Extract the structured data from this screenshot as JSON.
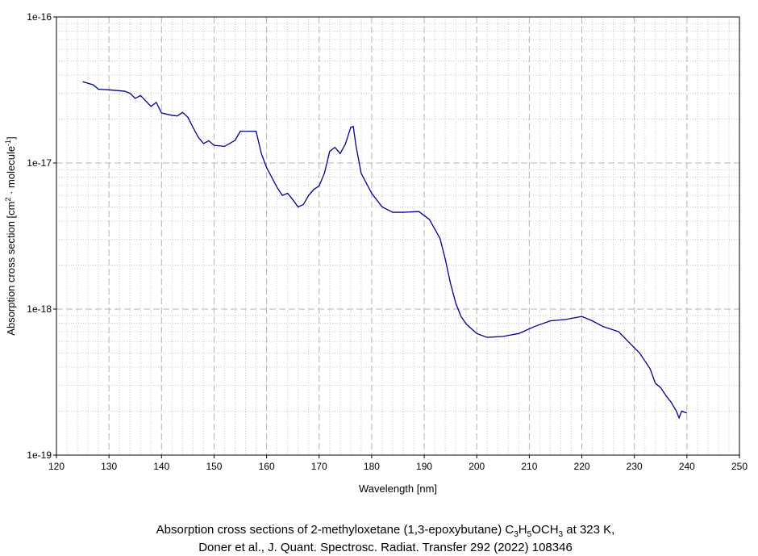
{
  "chart_data": {
    "type": "line",
    "x_label": "Wavelength [nm]",
    "y_label": [
      "Absorption cross section [cm",
      "2",
      " · molecule",
      "-1",
      "]"
    ],
    "caption": [
      [
        "Absorption cross sections of 2-methyloxetane (1,3-epoxybutane) C",
        "3",
        "H",
        "5",
        "OCH",
        "3",
        " at 323 K,"
      ],
      [
        "Doner et al., J. Quant. Spectrosc. Radiat. Transfer 292 (2022) 108346"
      ]
    ],
    "color": "#00008b",
    "log_y": true,
    "grid": true,
    "xlim": [
      120,
      250
    ],
    "xticks": [
      120,
      130,
      140,
      150,
      160,
      170,
      180,
      190,
      200,
      210,
      220,
      230,
      240,
      250
    ],
    "ylim": [
      1e-19,
      1e-16
    ],
    "yticks": [
      {
        "value": 1e-19,
        "label": "1e-19"
      },
      {
        "value": 1e-18,
        "label": "1e-18"
      },
      {
        "value": 1e-17,
        "label": "1e-17"
      },
      {
        "value": 1e-16,
        "label": "1e-16"
      }
    ],
    "x": [
      125,
      127,
      128,
      130,
      133,
      134,
      135,
      136,
      137,
      138,
      139,
      140,
      142,
      143,
      144,
      145,
      146,
      147,
      148,
      149,
      150,
      152,
      154,
      155,
      156,
      158,
      159,
      160,
      162,
      163,
      164,
      165,
      166,
      167,
      168,
      169,
      170,
      171,
      172,
      173,
      174,
      175,
      176,
      176.5,
      177,
      178,
      180,
      182,
      184,
      186,
      189,
      191,
      193,
      194,
      195,
      196,
      197,
      198,
      200,
      202,
      205,
      208,
      211,
      214,
      217,
      220,
      222,
      224,
      227,
      229,
      231,
      233,
      234,
      235,
      236,
      237,
      238,
      238.5,
      239,
      240
    ],
    "values": [
      3.6e-17,
      3.43e-17,
      3.2e-17,
      3.17e-17,
      3.1e-17,
      3e-17,
      2.77e-17,
      2.9e-17,
      2.66e-17,
      2.44e-17,
      2.6e-17,
      2.2e-17,
      2.12e-17,
      2.1e-17,
      2.22e-17,
      2.06e-17,
      1.75e-17,
      1.5e-17,
      1.36e-17,
      1.42e-17,
      1.32e-17,
      1.3e-17,
      1.43e-17,
      1.65e-17,
      1.65e-17,
      1.65e-17,
      1.16e-17,
      9.3e-18,
      6.8e-18,
      6e-18,
      6.2e-18,
      5.6e-18,
      5e-18,
      5.2e-18,
      6e-18,
      6.6e-18,
      6.97e-18,
      8.5e-18,
      1.2e-17,
      1.28e-17,
      1.16e-17,
      1.35e-17,
      1.75e-17,
      1.78e-17,
      1.32e-17,
      8.5e-18,
      6.2e-18,
      5e-18,
      4.6e-18,
      4.6e-18,
      4.65e-18,
      4.1e-18,
      3.05e-18,
      2.2e-18,
      1.5e-18,
      1.1e-18,
      8.9e-19,
      7.9e-19,
      6.8e-19,
      6.4e-19,
      6.5e-19,
      6.8e-19,
      7.6e-19,
      8.3e-19,
      8.5e-19,
      8.9e-19,
      8.3e-19,
      7.6e-19,
      7e-19,
      5.9e-19,
      5e-19,
      3.9e-19,
      3.1e-19,
      2.9e-19,
      2.56e-19,
      2.3e-19,
      2e-19,
      1.8e-19,
      2e-19,
      1.94e-19
    ]
  }
}
